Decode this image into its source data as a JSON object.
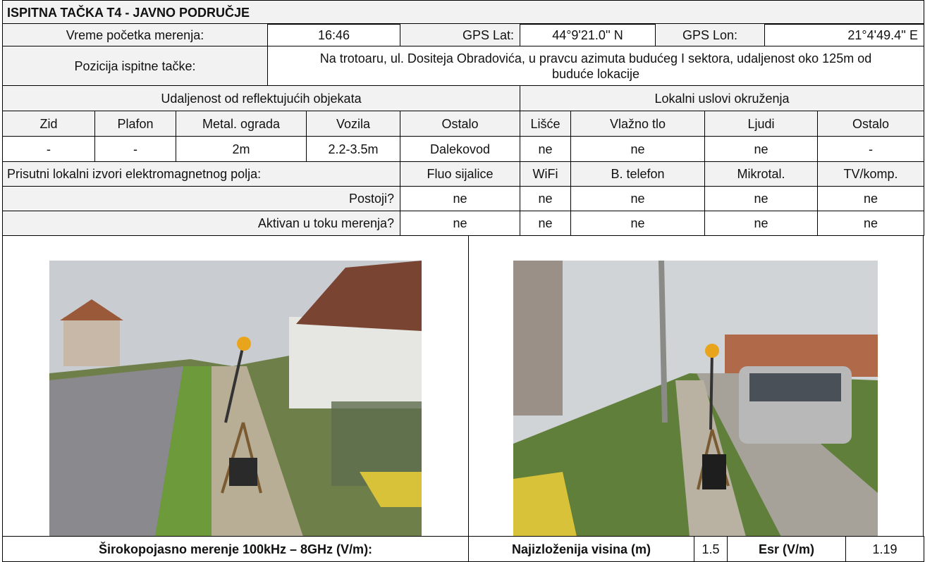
{
  "title": "ISPITNA TAČKA T4 - JAVNO PODRUČJE",
  "info": {
    "start_time_label": "Vreme početka merenja:",
    "start_time": "16:46",
    "gps_lat_label": "GPS Lat:",
    "gps_lat": "44°9'21.0'' N",
    "gps_lon_label": "GPS Lon:",
    "gps_lon": "21°4'49.4'' E",
    "position_label": "Pozicija ispitne tačke:",
    "position": "Na trotoaru, ul. Dositeja Obradovića, u pravcu azimuta budućeg I sektora, udaljenost oko 125m od buduće lokacije"
  },
  "reflective": {
    "title": "Udaljenost od reflektujućih objekata",
    "headers": [
      "Zid",
      "Plafon",
      "Metal. ograda",
      "Vozila",
      "Ostalo"
    ],
    "values": [
      "-",
      "-",
      "2m",
      "2.2-3.5m",
      "Dalekovod"
    ]
  },
  "environment": {
    "title": "Lokalni uslovi okruženja",
    "headers": [
      "Lišće",
      "Vlažno tlo",
      "Ljudi",
      "Ostalo"
    ],
    "values": [
      "ne",
      "ne",
      "ne",
      "-"
    ]
  },
  "em_sources": {
    "title": "Prisutni lokalni izvori elektromagnetnog polja:",
    "headers": [
      "Fluo sijalice",
      "WiFi",
      "B. telefon",
      "Mikrotal.",
      "TV/komp."
    ],
    "rows": [
      {
        "label": "Postoji?",
        "values": [
          "ne",
          "ne",
          "ne",
          "ne",
          "ne"
        ]
      },
      {
        "label": "Aktivan u toku merenja?",
        "values": [
          "ne",
          "ne",
          "ne",
          "ne",
          "ne"
        ]
      }
    ]
  },
  "measurement": {
    "label": "Širokopojasno merenje 100kHz – 8GHz (V/m):",
    "height_label": "Najizloženija visina (m)",
    "height": "1.5",
    "esr_label": "Esr (V/m)",
    "esr": "1.19"
  }
}
